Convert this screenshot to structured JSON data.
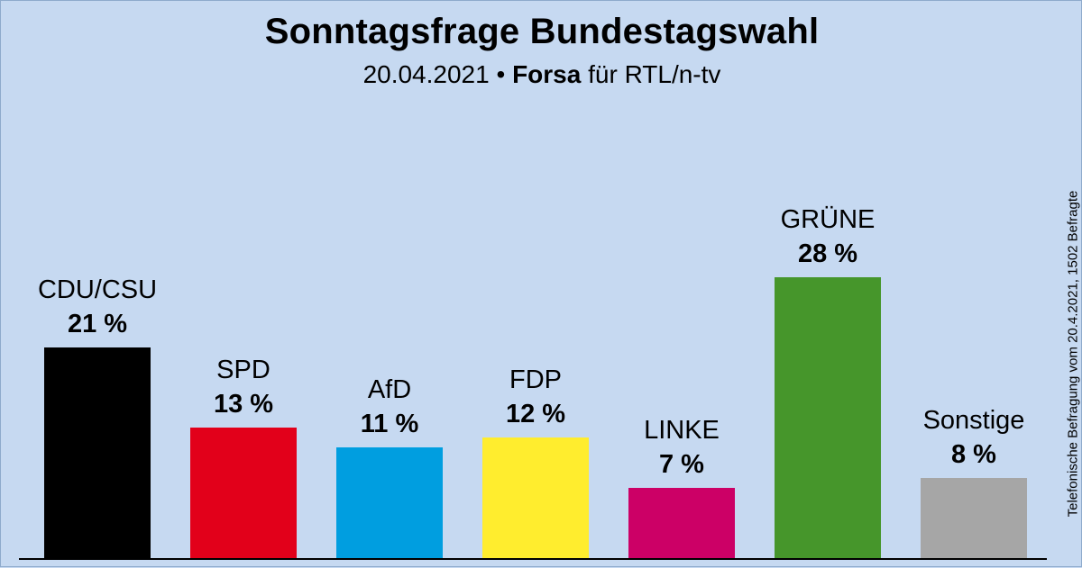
{
  "chart_data": {
    "type": "bar",
    "title": "Sonntagsfrage Bundestagswahl",
    "subtitle": {
      "date": "20.04.2021",
      "separator": "•",
      "institute": "Forsa",
      "client": "für RTL/n-tv"
    },
    "categories": [
      "CDU/CSU",
      "SPD",
      "AfD",
      "FDP",
      "LINKE",
      "GRÜNE",
      "Sonstige"
    ],
    "values": [
      21,
      13,
      11,
      12,
      7,
      28,
      8
    ],
    "value_labels": [
      "21 %",
      "13 %",
      "11 %",
      "12 %",
      "7 %",
      "28 %",
      "8 %"
    ],
    "colors": [
      "#000000",
      "#e2001a",
      "#009ee0",
      "#ffed2e",
      "#cc0066",
      "#46962b",
      "#a6a6a6"
    ],
    "ylim": [
      0,
      28
    ],
    "xlabel": "",
    "ylabel": "",
    "grid": false,
    "note": "Telefonische Befragung vom 20.4.2021, 1502 Befragte"
  }
}
